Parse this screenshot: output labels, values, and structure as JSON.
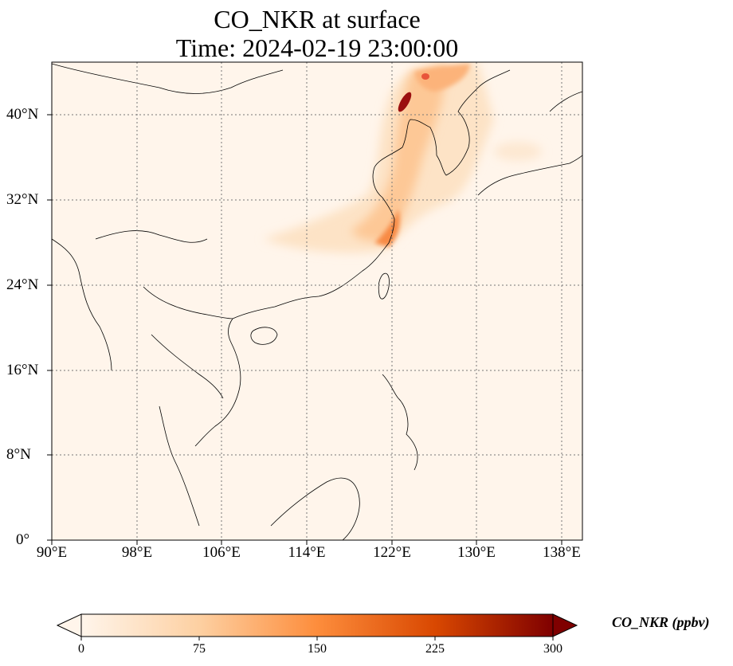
{
  "title": {
    "line1": "CO_NKR at surface",
    "line2": "Time: 2024-02-19 23:00:00"
  },
  "map": {
    "lon_ticks": [
      "90°E",
      "98°E",
      "106°E",
      "114°E",
      "122°E",
      "130°E",
      "138°E"
    ],
    "lat_ticks": [
      "40°N",
      "32°N",
      "24°N",
      "16°N",
      "8°N",
      "0°"
    ],
    "gridlines": true,
    "gridline_style": "dotted"
  },
  "colorbar": {
    "label": "CO_NKR (ppbv)",
    "ticks": [
      "0",
      "75",
      "150",
      "225",
      "300"
    ],
    "colormap": [
      "#fff5eb",
      "#fdd0a2",
      "#fd8d3c",
      "#d94801",
      "#7f0000"
    ],
    "extend": "both"
  }
}
